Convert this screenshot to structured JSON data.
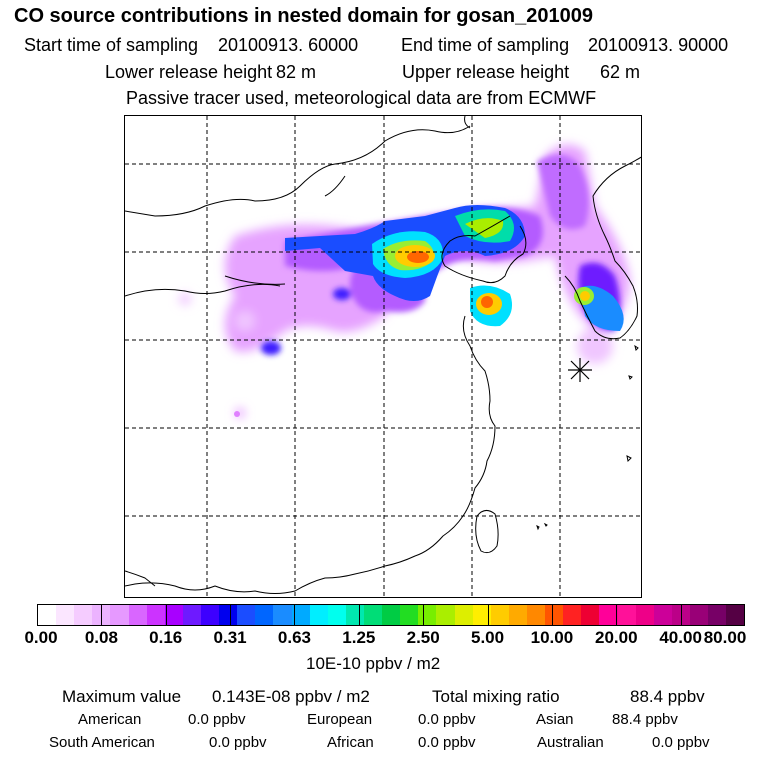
{
  "header": {
    "title": "CO  source contributions in nested domain for gosan_201009",
    "start_label": "Start time of sampling",
    "start_value": "20100913. 60000",
    "end_label": "End time of sampling",
    "end_value": "20100913. 90000",
    "lower_label": "Lower release height",
    "lower_value": "82 m",
    "upper_label": "Upper release height",
    "upper_value": "62 m",
    "note": "Passive tracer used, meteorological data are from ECMWF"
  },
  "colorbar": {
    "colors": [
      "#ffffff",
      "#fbe6ff",
      "#f5ccff",
      "#ecb3ff",
      "#e699ff",
      "#d966ff",
      "#cc33ff",
      "#a800ff",
      "#6e1aff",
      "#3d00ff",
      "#0000ee",
      "#1b4dff",
      "#0066ff",
      "#1a8cff",
      "#00aaff",
      "#00eeff",
      "#00ffee",
      "#00e8b0",
      "#00dd77",
      "#00cc44",
      "#22dd22",
      "#77ee00",
      "#aaee00",
      "#ddee00",
      "#ffee00",
      "#ffcc00",
      "#ffaa00",
      "#ff8800",
      "#ff5500",
      "#ff2222",
      "#ee0033",
      "#ff0099",
      "#ff1199",
      "#ee0088",
      "#cc0099",
      "#bb0088",
      "#990077",
      "#770066",
      "#550044"
    ],
    "tick_labels": [
      "0.00",
      "0.08",
      "0.16",
      "0.31",
      "0.63",
      "1.25",
      "2.50",
      "5.00",
      "10.00",
      "20.00",
      "40.00",
      "80.00"
    ],
    "unit": "10E-10 ppbv / m2"
  },
  "stats": {
    "max_label": "Maximum value",
    "max_value": "0.143E-08 ppbv / m2",
    "total_label": "Total mixing ratio",
    "total_value": "88.4 ppbv"
  },
  "sources": [
    {
      "name": "American",
      "value": "0.0 ppbv"
    },
    {
      "name": "European",
      "value": "0.0 ppbv"
    },
    {
      "name": "Asian",
      "value": "88.4 ppbv"
    },
    {
      "name": "South American",
      "value": "0.0 ppbv"
    },
    {
      "name": "African",
      "value": "0.0 ppbv"
    },
    {
      "name": "Australian",
      "value": "0.0 ppbv"
    }
  ],
  "map": {
    "receptor_marker": "asterisk-icon"
  }
}
